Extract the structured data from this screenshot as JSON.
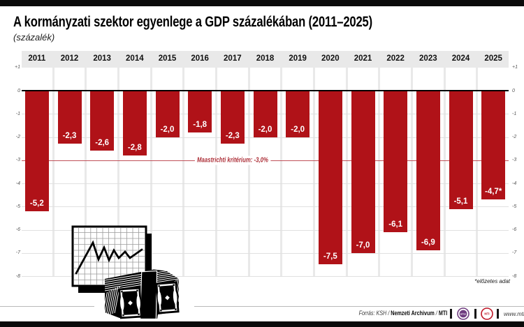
{
  "page": {
    "title": "A kormányzati szektor egyenlege a GDP százalékában (2011–2025)",
    "subtitle": "(százalék)",
    "footnote": "*előzetes adat"
  },
  "chart_data": {
    "type": "bar",
    "title": "A kormányzati szektor egyenlege a GDP százalékában (2011–2025)",
    "subtitle": "(százalék)",
    "xlabel": "",
    "ylabel": "százalék",
    "categories": [
      "2011",
      "2012",
      "2013",
      "2014",
      "2015",
      "2016",
      "2017",
      "2018",
      "2019",
      "2020",
      "2021",
      "2022",
      "2023",
      "2024",
      "2025"
    ],
    "values": [
      -5.2,
      -2.3,
      -2.6,
      -2.8,
      -2.0,
      -1.8,
      -2.3,
      -2.0,
      -2.0,
      -7.5,
      -7.0,
      -6.1,
      -6.9,
      -5.1,
      -4.7
    ],
    "value_labels": [
      "-5,2",
      "-2,3",
      "-2,6",
      "-2,8",
      "-2,0",
      "-1,8",
      "-2,3",
      "-2,0",
      "-2,0",
      "-7,5",
      "-7,0",
      "-6,1",
      "-6,9",
      "-5,1",
      "-4,7*"
    ],
    "ylim": [
      -8,
      1
    ],
    "y_ticks": [
      1,
      0,
      -1,
      -2,
      -3,
      -4,
      -5,
      -6,
      -7,
      -8
    ],
    "y_tick_labels": [
      "+1",
      "0",
      "-1",
      "-2",
      "-3",
      "-4",
      "-5",
      "-6",
      "-7",
      "-8"
    ],
    "reference_line": {
      "value": -3.0,
      "label": "Maastrichti kritérium: -3,0%",
      "color": "#c05058",
      "label_color": "#ad3039"
    },
    "bar_color": "#b01218",
    "grid": true,
    "legend": "none",
    "footnote": "*előzetes adat"
  },
  "footer": {
    "source_italic": "Forrás: KSH / ",
    "source_bold_1": "Nemzeti Archivum",
    "source_sep": " / ",
    "source_bold_2": "MTI",
    "website": "www.mti.hu",
    "logo_mtva_label": "MTVA",
    "logo_mti_label": "MTI"
  },
  "colors": {
    "bar": "#b01218",
    "reference": "#c2262e",
    "logo_mtva": "#6f3c80",
    "logo_mti": "#bf1626"
  }
}
